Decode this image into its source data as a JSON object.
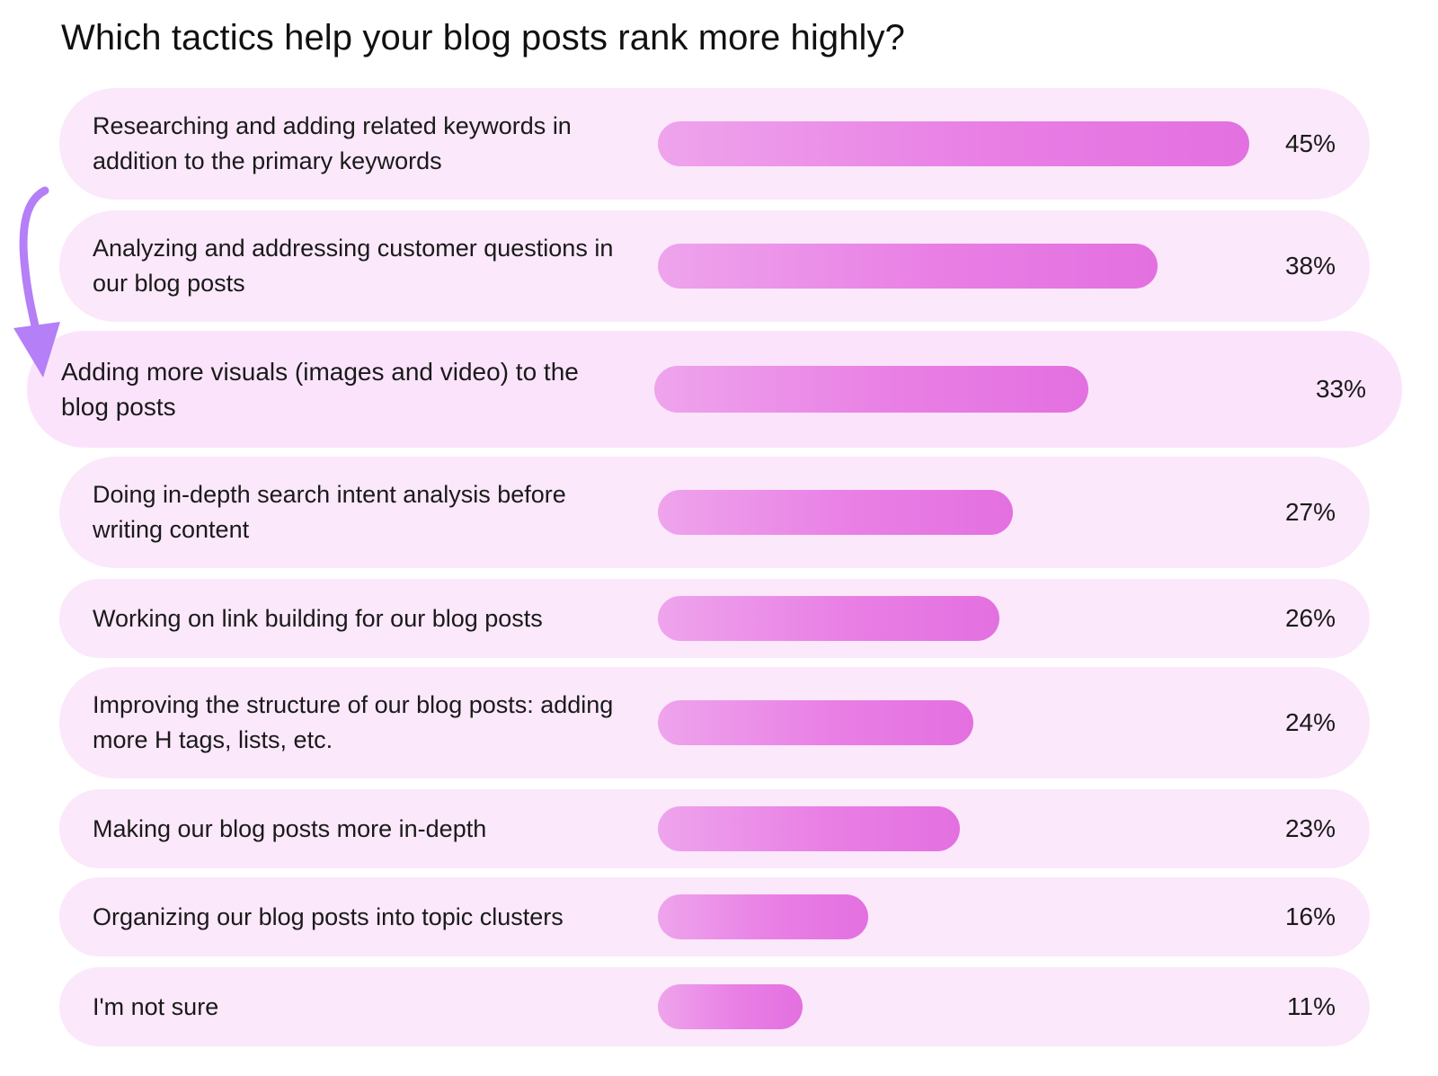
{
  "chart_data": {
    "type": "bar",
    "orientation": "horizontal",
    "title": "Which tactics help your blog posts rank more highly?",
    "categories": [
      "Researching and adding related keywords in addition to the primary keywords",
      "Analyzing and addressing customer questions in our blog posts",
      "Adding more visuals (images and video) to the blog posts",
      "Doing in-depth search intent analysis before writing content",
      "Working on link building for our blog posts",
      "Improving the structure of our blog posts: adding more H tags, lists, etc.",
      "Making our blog posts more in-depth",
      "Organizing our blog posts into topic clusters",
      "I'm not sure"
    ],
    "values": [
      45,
      38,
      33,
      27,
      26,
      24,
      23,
      16,
      11
    ],
    "value_labels": [
      "45%",
      "38%",
      "33%",
      "27%",
      "26%",
      "24%",
      "23%",
      "16%",
      "11%"
    ],
    "unit": "%",
    "highlighted_index": 2,
    "colors": {
      "row_background": "#fbe8fb",
      "bar_start": "#eea4ec",
      "bar_end": "#e370e0",
      "arrow": "#b57ff7"
    },
    "annotation_icon": "curved-down-arrow-icon"
  }
}
